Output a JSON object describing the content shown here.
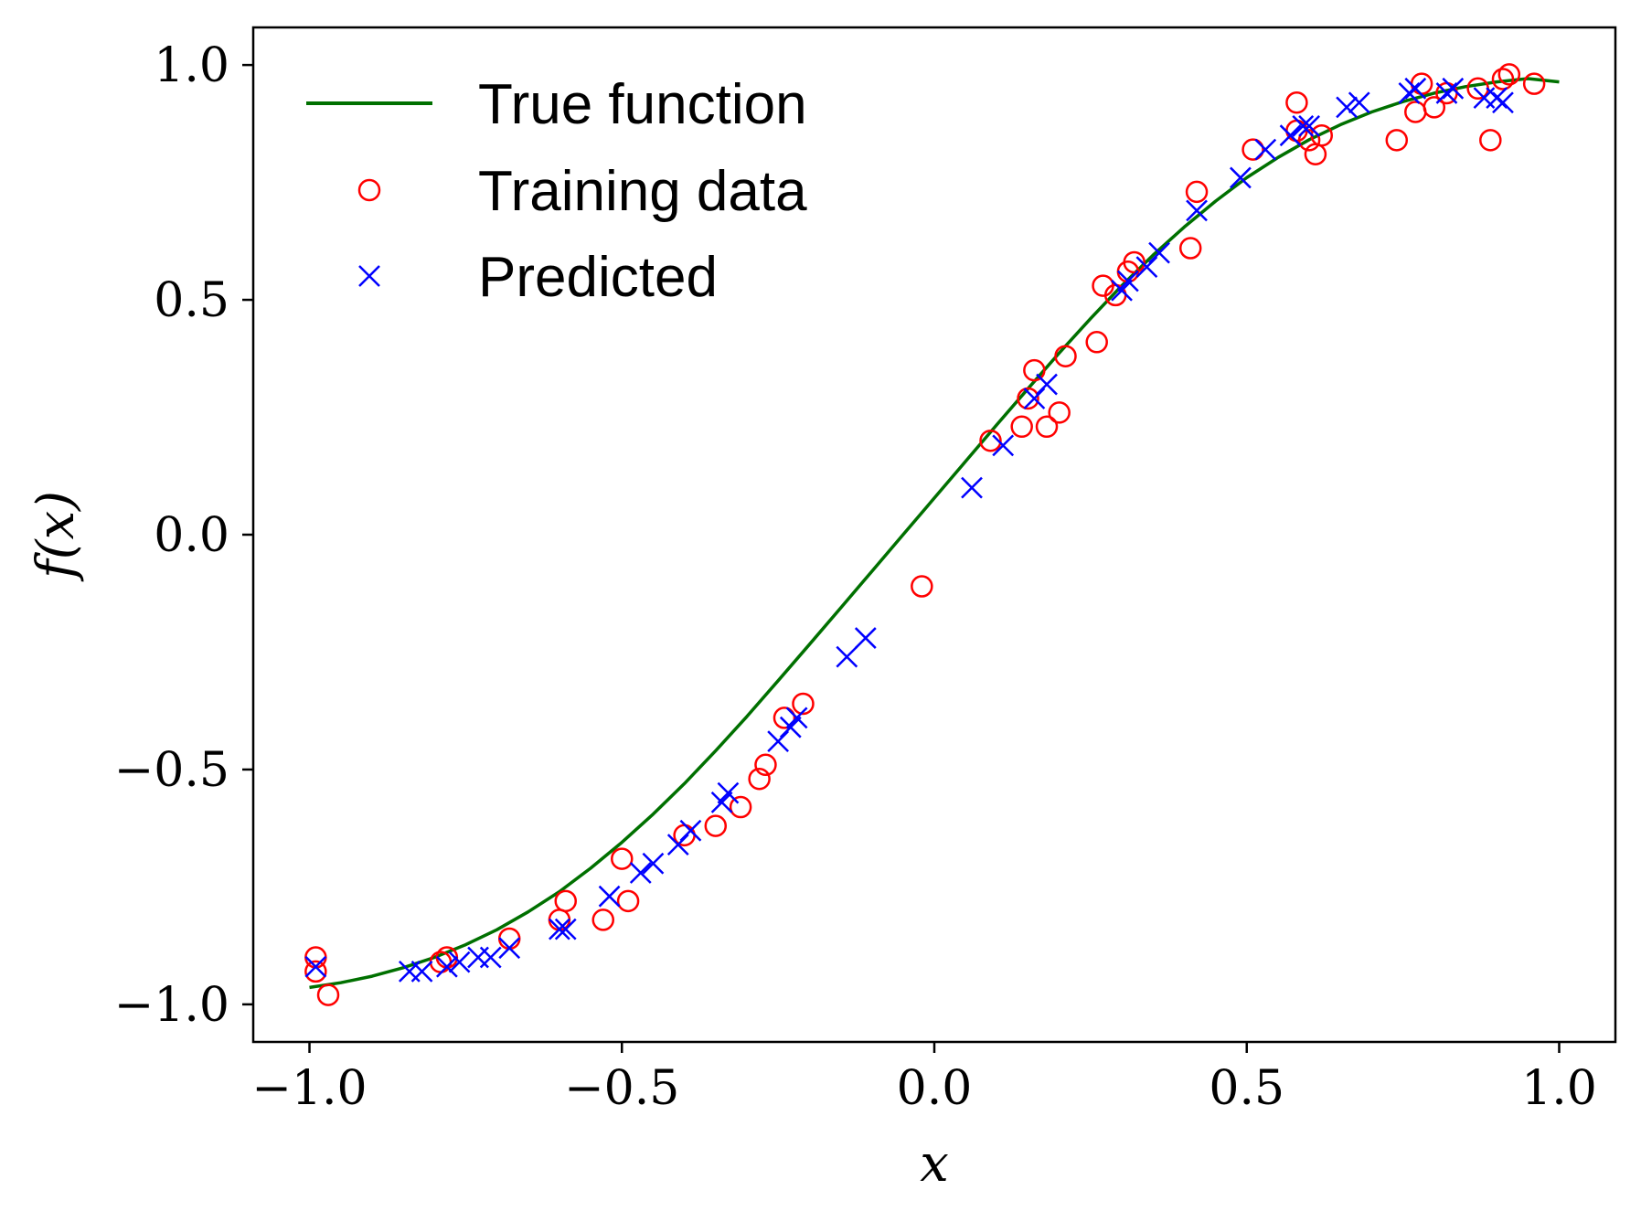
{
  "chart_data": {
    "type": "scatter",
    "xlabel": "x",
    "ylabel": "f(x)",
    "xlim": [
      -1.09,
      1.09
    ],
    "ylim": [
      -1.08,
      1.08
    ],
    "xticks": [
      -1.0,
      -0.5,
      0.0,
      0.5,
      1.0
    ],
    "yticks": [
      -1.0,
      -0.5,
      0.0,
      0.5,
      1.0
    ],
    "xtick_labels": [
      "−1.0",
      "−0.5",
      "0.0",
      "0.5",
      "1.0"
    ],
    "ytick_labels": [
      "−1.0",
      "−0.5",
      "0.0",
      "0.5",
      "1.0"
    ],
    "grid": false,
    "legend_position": "top-left",
    "series": [
      {
        "name": "True function",
        "kind": "line",
        "color": "#007000",
        "x": [
          -1.0,
          -0.95,
          -0.9,
          -0.85,
          -0.8,
          -0.75,
          -0.7,
          -0.65,
          -0.6,
          -0.55,
          -0.5,
          -0.45,
          -0.4,
          -0.35,
          -0.3,
          -0.25,
          -0.2,
          -0.15,
          -0.1,
          -0.05,
          0.0,
          0.05,
          0.1,
          0.15,
          0.2,
          0.25,
          0.3,
          0.35,
          0.4,
          0.45,
          0.5,
          0.55,
          0.6,
          0.65,
          0.7,
          0.75,
          0.8,
          0.85,
          0.9,
          0.95,
          1.0
        ],
        "y": [
          -0.964,
          -0.954,
          -0.94,
          -0.922,
          -0.9,
          -0.873,
          -0.841,
          -0.803,
          -0.76,
          -0.71,
          -0.655,
          -0.595,
          -0.53,
          -0.46,
          -0.387,
          -0.311,
          -0.234,
          -0.156,
          -0.078,
          0.0,
          0.078,
          0.156,
          0.234,
          0.311,
          0.387,
          0.46,
          0.53,
          0.595,
          0.655,
          0.71,
          0.76,
          0.803,
          0.841,
          0.873,
          0.9,
          0.922,
          0.94,
          0.954,
          0.964,
          0.971,
          0.964
        ]
      },
      {
        "name": "Training data",
        "kind": "scatter",
        "marker": "circle",
        "color": "#ff0000",
        "x": [
          -0.99,
          -0.99,
          -0.97,
          -0.79,
          -0.78,
          -0.68,
          -0.6,
          -0.59,
          -0.53,
          -0.5,
          -0.49,
          -0.4,
          -0.35,
          -0.31,
          -0.28,
          -0.27,
          -0.24,
          -0.21,
          -0.02,
          0.09,
          0.14,
          0.15,
          0.16,
          0.18,
          0.2,
          0.21,
          0.26,
          0.27,
          0.29,
          0.31,
          0.32,
          0.41,
          0.42,
          0.51,
          0.58,
          0.58,
          0.6,
          0.61,
          0.62,
          0.74,
          0.77,
          0.78,
          0.8,
          0.82,
          0.87,
          0.89,
          0.91,
          0.92,
          0.96
        ],
        "y": [
          -0.9,
          -0.93,
          -0.98,
          -0.91,
          -0.9,
          -0.86,
          -0.82,
          -0.78,
          -0.82,
          -0.69,
          -0.78,
          -0.64,
          -0.62,
          -0.58,
          -0.52,
          -0.49,
          -0.39,
          -0.36,
          -0.11,
          0.2,
          0.23,
          0.29,
          0.35,
          0.23,
          0.26,
          0.38,
          0.41,
          0.53,
          0.51,
          0.56,
          0.58,
          0.61,
          0.73,
          0.82,
          0.86,
          0.92,
          0.84,
          0.81,
          0.85,
          0.84,
          0.9,
          0.96,
          0.91,
          0.94,
          0.95,
          0.84,
          0.97,
          0.98,
          0.96
        ]
      },
      {
        "name": "Predicted",
        "kind": "scatter",
        "marker": "x",
        "color": "#0000ff",
        "x": [
          -0.99,
          -0.84,
          -0.82,
          -0.78,
          -0.76,
          -0.73,
          -0.71,
          -0.68,
          -0.6,
          -0.59,
          -0.52,
          -0.47,
          -0.45,
          -0.41,
          -0.39,
          -0.34,
          -0.33,
          -0.25,
          -0.23,
          -0.22,
          -0.14,
          -0.11,
          0.06,
          0.11,
          0.16,
          0.18,
          0.3,
          0.31,
          0.34,
          0.36,
          0.42,
          0.49,
          0.53,
          0.57,
          0.59,
          0.6,
          0.66,
          0.68,
          0.76,
          0.77,
          0.82,
          0.83,
          0.88,
          0.9,
          0.91
        ],
        "y": [
          -0.92,
          -0.93,
          -0.93,
          -0.92,
          -0.91,
          -0.9,
          -0.9,
          -0.88,
          -0.84,
          -0.84,
          -0.77,
          -0.72,
          -0.7,
          -0.66,
          -0.63,
          -0.57,
          -0.55,
          -0.44,
          -0.41,
          -0.39,
          -0.26,
          -0.22,
          0.1,
          0.19,
          0.29,
          0.32,
          0.52,
          0.54,
          0.57,
          0.6,
          0.69,
          0.76,
          0.82,
          0.85,
          0.87,
          0.87,
          0.91,
          0.92,
          0.94,
          0.95,
          0.94,
          0.95,
          0.93,
          0.93,
          0.92
        ]
      }
    ]
  }
}
